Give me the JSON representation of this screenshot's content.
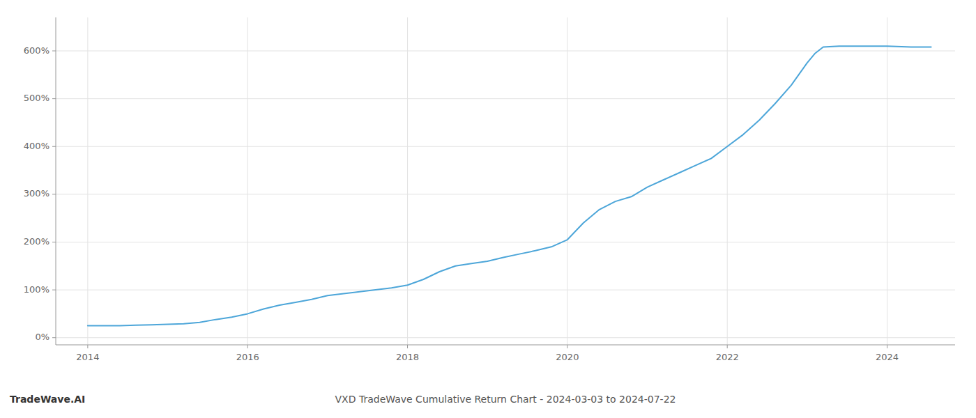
{
  "chart_data": {
    "type": "line",
    "title": "VXD TradeWave Cumulative Return Chart - 2024-03-03 to 2024-07-22",
    "annotations": [
      "TradeWave.AI"
    ],
    "color": "#4da6d9",
    "grid": true,
    "x": [
      2014.0,
      2014.2,
      2014.4,
      2014.6,
      2014.8,
      2015.0,
      2015.2,
      2015.4,
      2015.6,
      2015.8,
      2016.0,
      2016.2,
      2016.4,
      2016.6,
      2016.8,
      2017.0,
      2017.2,
      2017.4,
      2017.6,
      2017.8,
      2018.0,
      2018.2,
      2018.4,
      2018.6,
      2018.8,
      2019.0,
      2019.2,
      2019.4,
      2019.6,
      2019.8,
      2020.0,
      2020.2,
      2020.4,
      2020.6,
      2020.8,
      2021.0,
      2021.2,
      2021.4,
      2021.6,
      2021.8,
      2022.0,
      2022.2,
      2022.4,
      2022.6,
      2022.8,
      2023.0,
      2023.1,
      2023.2,
      2023.4,
      2023.6,
      2023.8,
      2024.0,
      2024.3,
      2024.55
    ],
    "values": [
      25,
      25,
      25,
      26,
      27,
      28,
      29,
      32,
      38,
      43,
      50,
      60,
      68,
      74,
      80,
      88,
      92,
      96,
      100,
      104,
      110,
      122,
      138,
      150,
      155,
      160,
      168,
      175,
      182,
      190,
      205,
      240,
      268,
      285,
      295,
      315,
      330,
      345,
      360,
      375,
      400,
      425,
      455,
      490,
      528,
      575,
      595,
      608,
      610,
      610,
      610,
      610,
      608,
      608
    ],
    "xlim": [
      2013.6,
      2024.85
    ],
    "ylim": [
      -15,
      670
    ],
    "xticks": [
      2014,
      2016,
      2018,
      2020,
      2022,
      2024
    ],
    "yticks": [
      {
        "value": 0,
        "label": "0%"
      },
      {
        "value": 100,
        "label": "100%"
      },
      {
        "value": 200,
        "label": "200%"
      },
      {
        "value": 300,
        "label": "300%"
      },
      {
        "value": 400,
        "label": "400%"
      },
      {
        "value": 500,
        "label": "500%"
      },
      {
        "value": 600,
        "label": "600%"
      }
    ]
  }
}
